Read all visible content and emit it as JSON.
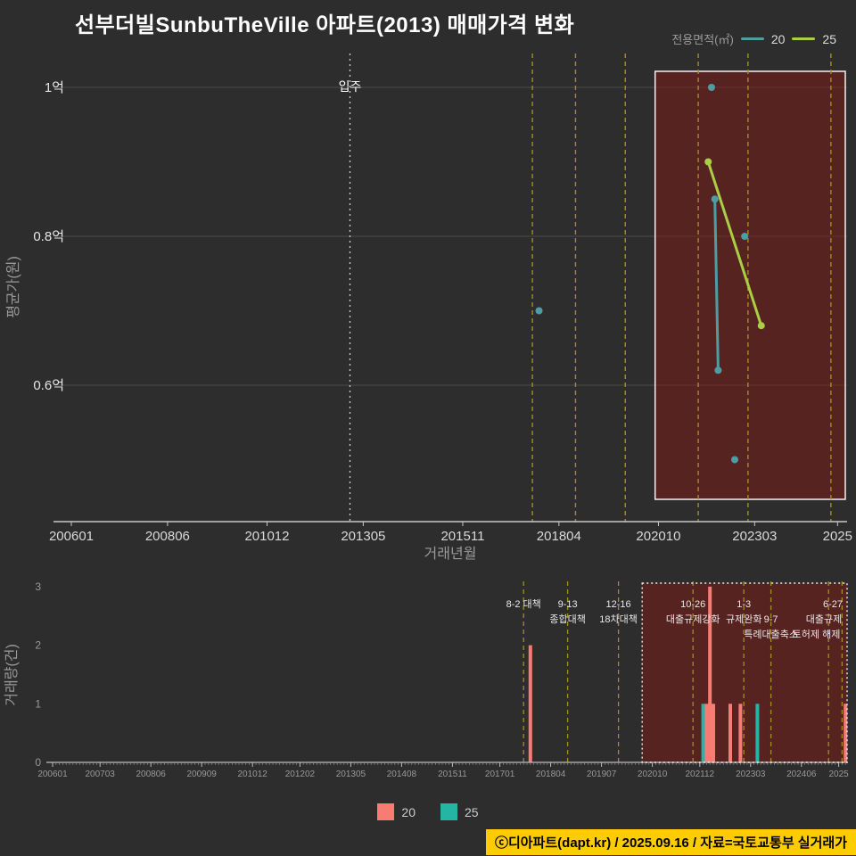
{
  "title": "선부더빌SunbuTheVille 아파트(2013) 매매가격 변화",
  "legend_top": {
    "label": "전용면적(㎡)",
    "items": [
      {
        "name": "20",
        "color": "#4d9da5"
      },
      {
        "name": "25",
        "color": "#a8cf45"
      }
    ]
  },
  "legend_bottom": {
    "items": [
      {
        "name": "20",
        "color": "#f87c73"
      },
      {
        "name": "25",
        "color": "#24b5a5"
      }
    ]
  },
  "footer": "ⓒ디아파트(dapt.kr) / 2025.09.16 / 자료=국토교통부 실거래가",
  "chart_data": {
    "price_chart": {
      "type": "line",
      "xlabel": "거래년월",
      "ylabel": "평균가(원)",
      "unit": "억",
      "ylim": [
        0.42,
        1.05
      ],
      "yticks": [
        {
          "v": 1.0,
          "label": "1억"
        },
        {
          "v": 0.8,
          "label": "0.8억"
        },
        {
          "v": 0.6,
          "label": "0.6억"
        }
      ],
      "xticks": [
        {
          "ym": "200601",
          "label": "200601"
        },
        {
          "ym": "200806",
          "label": "200806"
        },
        {
          "ym": "201012",
          "label": "201012"
        },
        {
          "ym": "201305",
          "label": "201305"
        },
        {
          "ym": "201511",
          "label": "201511"
        },
        {
          "ym": "201804",
          "label": "201804"
        },
        {
          "ym": "202010",
          "label": "202010"
        },
        {
          "ym": "202303",
          "label": "202303"
        },
        {
          "ym": "202504",
          "label": "2025"
        }
      ],
      "series": [
        {
          "name": "20",
          "color": "#4d9da5",
          "points": [
            {
              "ym": "201710",
              "v": 0.7
            },
            {
              "ym": "202202",
              "v": 1.0
            },
            {
              "ym": "202203",
              "v": 0.85
            },
            {
              "ym": "202204",
              "v": 0.62
            },
            {
              "ym": "202209",
              "v": 0.5
            },
            {
              "ym": "202212",
              "v": 0.8
            }
          ],
          "segments": [
            [
              2,
              3
            ]
          ]
        },
        {
          "name": "25",
          "color": "#a8cf45",
          "points": [
            {
              "ym": "202201",
              "v": 0.9
            },
            {
              "ym": "202305",
              "v": 0.68
            }
          ],
          "segments": [
            [
              0,
              1
            ]
          ]
        }
      ],
      "move_in": {
        "ym": "201301",
        "label": "입주"
      },
      "highlight": {
        "from": "202009",
        "to": "202508"
      }
    },
    "volume_chart": {
      "type": "bar",
      "ylabel": "거래량(건)",
      "ylim": [
        0,
        3
      ],
      "yticks": [
        0,
        1,
        2,
        3
      ],
      "xticks": [
        {
          "ym": "200601",
          "label": "200601"
        },
        {
          "ym": "200703",
          "label": "200703"
        },
        {
          "ym": "200806",
          "label": "200806"
        },
        {
          "ym": "200909",
          "label": "200909"
        },
        {
          "ym": "201012",
          "label": "201012"
        },
        {
          "ym": "201202",
          "label": "201202"
        },
        {
          "ym": "201305",
          "label": "201305"
        },
        {
          "ym": "201408",
          "label": "201408"
        },
        {
          "ym": "201511",
          "label": "201511"
        },
        {
          "ym": "201701",
          "label": "201701"
        },
        {
          "ym": "201804",
          "label": "201804"
        },
        {
          "ym": "201907",
          "label": "201907"
        },
        {
          "ym": "202010",
          "label": "202010"
        },
        {
          "ym": "202112",
          "label": "202112"
        },
        {
          "ym": "202303",
          "label": "202303"
        },
        {
          "ym": "202406",
          "label": "202406"
        },
        {
          "ym": "202505",
          "label": "2025"
        }
      ],
      "bars": [
        {
          "ym": "201710",
          "size": "20",
          "count": 2
        },
        {
          "ym": "202201",
          "size": "25",
          "count": 1
        },
        {
          "ym": "202202",
          "size": "20",
          "count": 1
        },
        {
          "ym": "202203",
          "size": "20",
          "count": 3
        },
        {
          "ym": "202204",
          "size": "20",
          "count": 1
        },
        {
          "ym": "202209",
          "size": "20",
          "count": 1
        },
        {
          "ym": "202212",
          "size": "20",
          "count": 1
        },
        {
          "ym": "202305",
          "size": "25",
          "count": 1
        },
        {
          "ym": "202507",
          "size": "20",
          "count": 1
        }
      ],
      "highlight": {
        "from": "202007",
        "to": "202509"
      }
    },
    "events": [
      {
        "ym": "201708",
        "top": true,
        "labels": [
          {
            "row": 1,
            "text": "8-2 대책"
          }
        ]
      },
      {
        "ym": "201809",
        "top": true,
        "labels": [
          {
            "row": 1,
            "text": "9-13"
          },
          {
            "row": 2,
            "text": "종합대책"
          }
        ]
      },
      {
        "ym": "201912",
        "top": true,
        "labels": [
          {
            "row": 1,
            "text": "12-16"
          },
          {
            "row": 2,
            "text": "18차대책"
          }
        ]
      },
      {
        "ym": "202110",
        "top": true,
        "labels": [
          {
            "row": 1,
            "text": "10-26"
          },
          {
            "row": 2,
            "text": "대출규제강화"
          }
        ]
      },
      {
        "ym": "202301",
        "top": true,
        "labels": [
          {
            "row": 1,
            "text": "1-3"
          },
          {
            "row": 2,
            "text": "규제완화"
          }
        ]
      },
      {
        "ym": "202309",
        "top": false,
        "labels": [
          {
            "row": 2,
            "text": "9-7"
          },
          {
            "row": 3,
            "text": "특례대출축소"
          }
        ]
      },
      {
        "ym": "202502",
        "top": true,
        "labels": [
          {
            "row": 3,
            "text": "토허제 해제"
          }
        ]
      },
      {
        "ym": "202506",
        "top": false,
        "labels": [
          {
            "row": 1,
            "text": "6-27"
          },
          {
            "row": 2,
            "text": "대출규제"
          }
        ]
      }
    ],
    "colors": {
      "size20_line": "#4d9da5",
      "size25_line": "#a8cf45",
      "size20_bar": "#f87c73",
      "size25_bar": "#24b5a5",
      "event_line": "#a18f1f",
      "highlight_fill": "rgba(140,25,20,0.45)",
      "grid": "#4a4a4a",
      "axis": "#c8c8c8",
      "footer_bg": "#ffcc00"
    }
  }
}
